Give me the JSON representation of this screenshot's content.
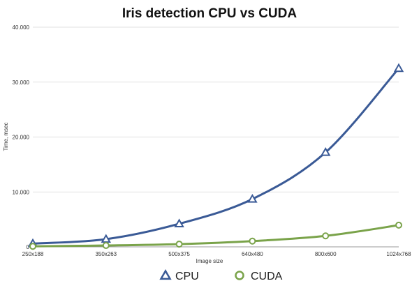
{
  "chart_data": {
    "type": "line",
    "title": "Iris detection CPU vs CUDA",
    "xlabel": "Image size",
    "ylabel": "Time, msec",
    "categories": [
      "250x188",
      "350x263",
      "500x375",
      "640x480",
      "800x600",
      "1024x768"
    ],
    "ylim": [
      0,
      40000
    ],
    "yticks": [
      0,
      10000,
      20000,
      30000,
      40000
    ],
    "ytick_labels": [
      "0",
      "10.000",
      "20.000",
      "30.000",
      "40.000"
    ],
    "grid": true,
    "legend_position": "bottom-center",
    "series": [
      {
        "name": "CPU",
        "marker": "triangle",
        "color": "#3a5a96",
        "values": [
          600,
          1400,
          4200,
          8700,
          17200,
          32500
        ]
      },
      {
        "name": "CUDA",
        "marker": "circle",
        "color": "#7aa34a",
        "values": [
          100,
          250,
          500,
          1050,
          2000,
          3950
        ]
      }
    ]
  }
}
